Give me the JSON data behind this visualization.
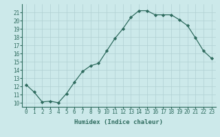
{
  "x": [
    0,
    1,
    2,
    3,
    4,
    5,
    6,
    7,
    8,
    9,
    10,
    11,
    12,
    13,
    14,
    15,
    16,
    17,
    18,
    19,
    20,
    21,
    22,
    23
  ],
  "y": [
    12.2,
    11.3,
    10.1,
    10.2,
    10.0,
    11.1,
    12.5,
    13.8,
    14.5,
    14.8,
    16.3,
    17.8,
    19.0,
    20.4,
    21.2,
    21.2,
    20.7,
    20.7,
    20.7,
    20.1,
    19.4,
    17.9,
    16.3,
    15.4
  ],
  "line_color": "#2e6b5e",
  "marker": "D",
  "marker_size": 2.2,
  "bg_color": "#cce9ea",
  "grid_color": "#b0d0d2",
  "xlabel": "Humidex (Indice chaleur)",
  "ylim": [
    9.5,
    22.0
  ],
  "xlim": [
    -0.5,
    23.5
  ],
  "yticks": [
    10,
    11,
    12,
    13,
    14,
    15,
    16,
    17,
    18,
    19,
    20,
    21
  ],
  "xticks": [
    0,
    1,
    2,
    3,
    4,
    5,
    6,
    7,
    8,
    9,
    10,
    11,
    12,
    13,
    14,
    15,
    16,
    17,
    18,
    19,
    20,
    21,
    22,
    23
  ],
  "tick_color": "#2e6b5e",
  "label_fontsize": 5.5,
  "axis_label_fontsize": 6.5,
  "linewidth": 0.9
}
